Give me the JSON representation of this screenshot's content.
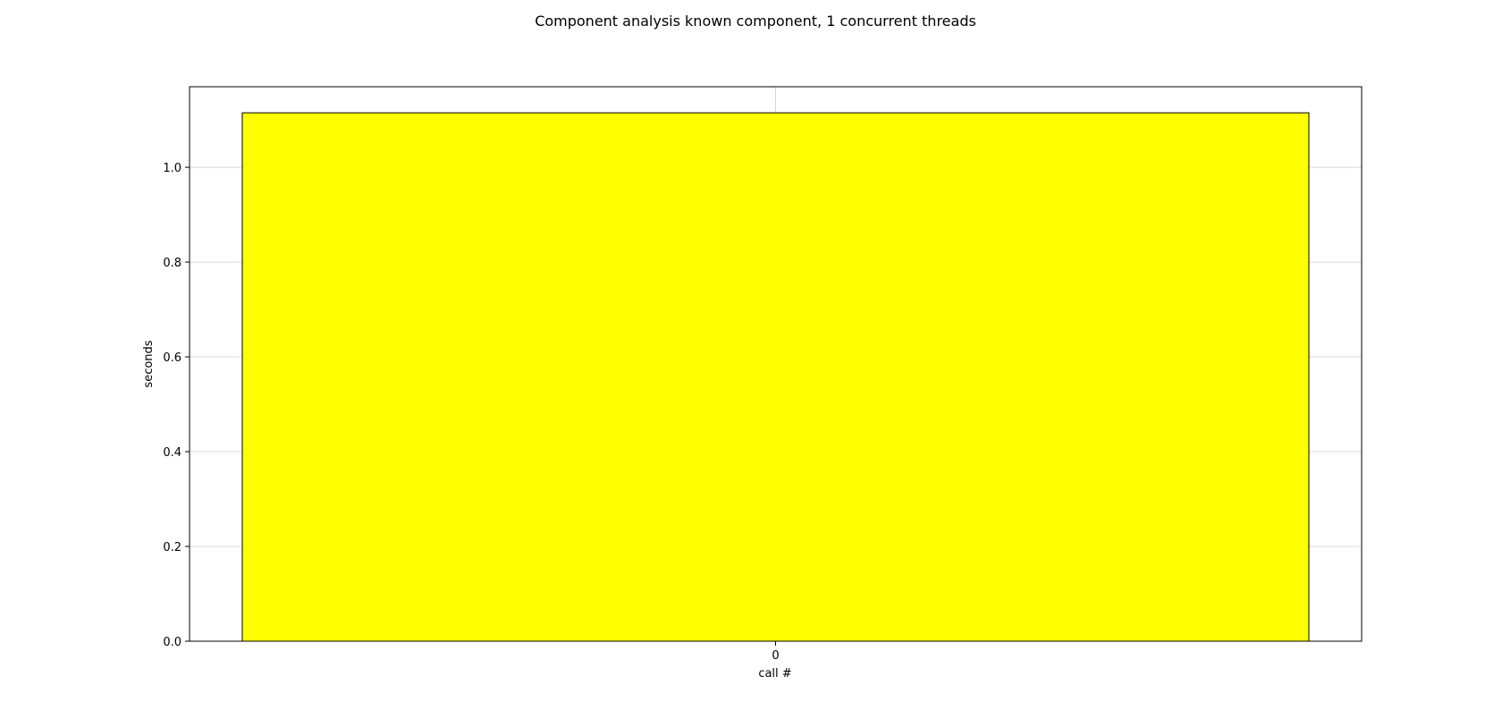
{
  "chart_data": {
    "type": "bar",
    "title": "Component analysis known component, 1 concurrent threads",
    "xlabel": "call #",
    "ylabel": "seconds",
    "categories": [
      "0"
    ],
    "values": [
      1.115
    ],
    "ylim": [
      0,
      1.17
    ],
    "yticks": [
      "0.0",
      "0.2",
      "0.4",
      "0.6",
      "0.8",
      "1.0"
    ],
    "ytick_values": [
      0.0,
      0.2,
      0.4,
      0.6,
      0.8,
      1.0
    ],
    "grid": true,
    "colors": {
      "bar_fill": "#ffff00",
      "bar_edge": "#000000",
      "grid": "#d9d9d9",
      "axes": "#000000"
    }
  }
}
